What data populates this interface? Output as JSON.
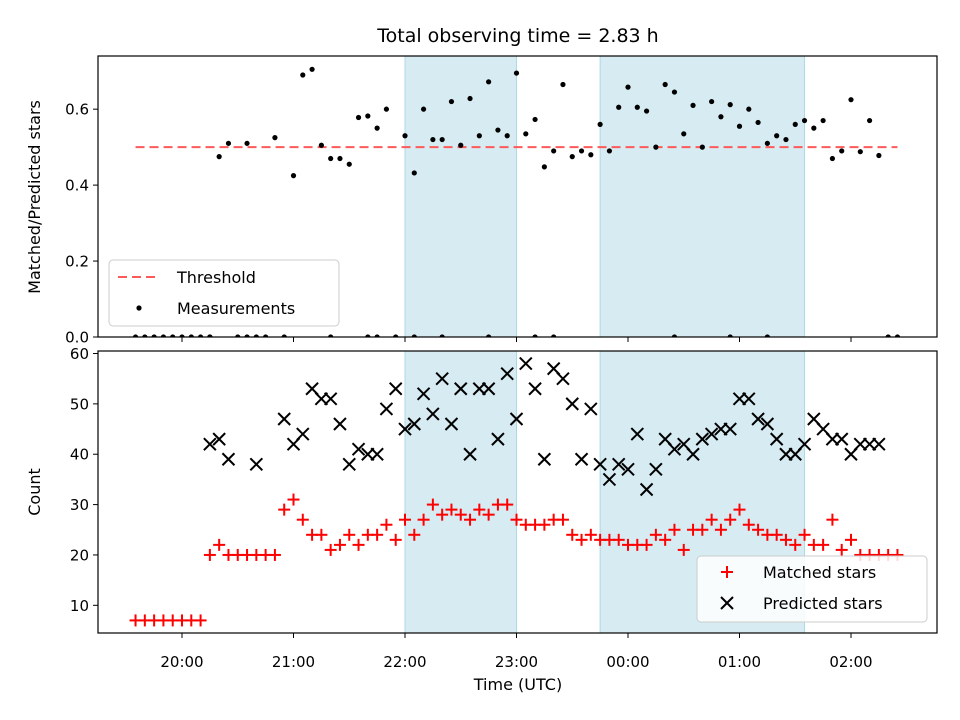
{
  "chart_data": {
    "type": "scatter",
    "title": "Total observing time = 2.83 h",
    "xlabel": "Time (UTC)",
    "x_ticks": [
      "20:00",
      "21:00",
      "22:00",
      "23:00",
      "00:00",
      "01:00",
      "02:00"
    ],
    "shaded_intervals": [
      [
        "22:00",
        "23:00"
      ],
      [
        "23:45",
        "01:35"
      ]
    ],
    "colors": {
      "shade": "#add8e6",
      "threshold": "#ff5a5a",
      "measurements": "#000000",
      "matched": "#ff0000",
      "predicted": "#000000"
    },
    "panels": [
      {
        "id": "ratio",
        "ylabel": "Matched/Predicted stars",
        "ylim": [
          0.0,
          0.74
        ],
        "y_ticks": [
          "0.0",
          "0.2",
          "0.4",
          "0.6"
        ],
        "legend_position": "lower left",
        "series": [
          {
            "name": "Threshold",
            "kind": "dashed-line",
            "x": [
              "19:35",
              "02:25"
            ],
            "y": [
              0.5,
              0.5
            ]
          },
          {
            "name": "Measurements",
            "kind": "dots",
            "x": [
              "19:35",
              "19:40",
              "19:45",
              "19:50",
              "19:55",
              "20:00",
              "20:05",
              "20:10",
              "20:15",
              "20:20",
              "20:25",
              "20:35",
              "20:40",
              "20:45",
              "20:50",
              "20:55",
              "21:00",
              "21:05",
              "21:10",
              "21:15",
              "21:20",
              "21:25",
              "21:30",
              "21:35",
              "21:40",
              "21:45",
              "21:50",
              "21:55",
              "22:00",
              "22:05",
              "22:10",
              "22:15",
              "22:20",
              "22:25",
              "22:30",
              "22:35",
              "22:40",
              "22:45",
              "22:50",
              "22:55",
              "23:00",
              "23:05",
              "23:10",
              "23:15",
              "23:20",
              "23:25",
              "23:30",
              "23:35",
              "23:40",
              "23:45",
              "23:50",
              "23:55",
              "00:00",
              "00:05",
              "00:10",
              "00:15",
              "00:20",
              "00:25",
              "00:30",
              "00:35",
              "00:40",
              "00:45",
              "00:50",
              "00:55",
              "01:00",
              "01:05",
              "01:10",
              "01:15",
              "01:20",
              "01:25",
              "01:30",
              "01:35",
              "01:40",
              "01:45",
              "01:50",
              "01:55",
              "02:00",
              "02:05",
              "02:10",
              "02:15",
              "02:20",
              "02:25",
              "20:15",
              "20:30",
              "20:35",
              "21:20",
              "21:40",
              "21:45",
              "22:05",
              "22:20",
              "22:45",
              "23:10",
              "23:20",
              "00:55",
              "01:15",
              "00:25"
            ],
            "y": [
              0.0,
              0.0,
              0.0,
              0.0,
              0.0,
              0.0,
              0.0,
              0.0,
              0.0,
              0.475,
              0.51,
              0.51,
              0.0,
              0.0,
              0.525,
              0.0,
              0.425,
              0.69,
              0.705,
              0.505,
              0.47,
              0.47,
              0.455,
              0.578,
              0.582,
              0.55,
              0.6,
              0.0,
              0.53,
              0.432,
              0.6,
              0.52,
              0.52,
              0.62,
              0.505,
              0.628,
              0.53,
              0.672,
              0.545,
              0.53,
              0.695,
              0.535,
              0.573,
              0.448,
              0.49,
              0.665,
              0.475,
              0.49,
              0.48,
              0.56,
              0.49,
              0.605,
              0.658,
              0.605,
              0.595,
              0.5,
              0.665,
              0.645,
              0.535,
              0.61,
              0.5,
              0.62,
              0.58,
              0.612,
              0.555,
              0.6,
              0.565,
              0.51,
              0.53,
              0.52,
              0.56,
              0.57,
              0.55,
              0.57,
              0.47,
              0.49,
              0.625,
              0.488,
              0.57,
              0.478,
              0.0,
              0.0,
              0.0,
              0.0,
              0.0,
              0.0,
              0.0,
              0.0,
              0.0,
              0.0,
              0.0,
              0.0,
              0.0,
              0.0,
              0.0,
              0.0
            ]
          }
        ]
      },
      {
        "id": "count",
        "ylabel": "Count",
        "ylim": [
          4.5,
          60.5
        ],
        "y_ticks": [
          "10",
          "20",
          "30",
          "40",
          "50",
          "60"
        ],
        "legend_position": "lower right",
        "series": [
          {
            "name": "Matched stars",
            "kind": "plus",
            "x": [
              "19:35",
              "19:40",
              "19:45",
              "19:50",
              "19:55",
              "20:00",
              "20:05",
              "20:10",
              "20:15",
              "20:20",
              "20:25",
              "20:30",
              "20:35",
              "20:40",
              "20:45",
              "20:50",
              "20:55",
              "21:00",
              "21:05",
              "21:10",
              "21:15",
              "21:20",
              "21:25",
              "21:30",
              "21:35",
              "21:40",
              "21:45",
              "21:50",
              "21:55",
              "22:00",
              "22:05",
              "22:10",
              "22:15",
              "22:20",
              "22:25",
              "22:30",
              "22:35",
              "22:40",
              "22:45",
              "22:50",
              "22:55",
              "23:00",
              "23:05",
              "23:10",
              "23:15",
              "23:20",
              "23:25",
              "23:30",
              "23:35",
              "23:40",
              "23:45",
              "23:50",
              "23:55",
              "00:00",
              "00:05",
              "00:10",
              "00:15",
              "00:20",
              "00:25",
              "00:30",
              "00:35",
              "00:40",
              "00:45",
              "00:50",
              "00:55",
              "01:00",
              "01:05",
              "01:10",
              "01:15",
              "01:20",
              "01:25",
              "01:30",
              "01:35",
              "01:40",
              "01:45",
              "01:50",
              "01:55",
              "02:00",
              "02:05",
              "02:10",
              "02:15",
              "02:20",
              "02:25"
            ],
            "y": [
              7,
              7,
              7,
              7,
              7,
              7,
              7,
              7,
              20,
              22,
              20,
              20,
              20,
              20,
              20,
              20,
              29,
              31,
              27,
              24,
              24,
              21,
              22,
              24,
              22,
              24,
              24,
              26,
              23,
              27,
              24,
              27,
              30,
              28,
              29,
              28,
              27,
              29,
              28,
              30,
              30,
              27,
              26,
              26,
              26,
              27,
              27,
              24,
              23,
              24,
              23,
              23,
              23,
              22,
              22,
              22,
              24,
              23,
              25,
              21,
              25,
              25,
              27,
              25,
              27,
              29,
              26,
              25,
              24,
              24,
              23,
              22,
              24,
              22,
              22,
              27,
              21,
              23,
              20,
              20,
              20,
              20,
              20
            ]
          },
          {
            "name": "Predicted stars",
            "kind": "x",
            "x": [
              "20:15",
              "20:20",
              "20:25",
              "20:40",
              "20:55",
              "21:00",
              "21:05",
              "21:10",
              "21:15",
              "21:20",
              "21:25",
              "21:30",
              "21:35",
              "21:40",
              "21:45",
              "21:50",
              "21:55",
              "22:00",
              "22:05",
              "22:10",
              "22:15",
              "22:20",
              "22:25",
              "22:30",
              "22:35",
              "22:40",
              "22:45",
              "22:50",
              "22:55",
              "23:00",
              "23:05",
              "23:10",
              "23:15",
              "23:20",
              "23:25",
              "23:30",
              "23:35",
              "23:40",
              "23:45",
              "23:50",
              "23:55",
              "00:00",
              "00:05",
              "00:10",
              "00:15",
              "00:20",
              "00:25",
              "00:30",
              "00:35",
              "00:40",
              "00:45",
              "00:50",
              "00:55",
              "01:00",
              "01:05",
              "01:10",
              "01:15",
              "01:20",
              "01:25",
              "01:30",
              "01:35",
              "01:40",
              "01:45",
              "01:50",
              "01:55",
              "02:00",
              "02:05",
              "02:10",
              "02:15"
            ],
            "y": [
              42,
              43,
              39,
              38,
              47,
              42,
              44,
              53,
              51,
              51,
              46,
              38,
              41,
              40,
              40,
              49,
              53,
              45,
              46,
              52,
              48,
              55,
              46,
              53,
              40,
              53,
              53,
              43,
              56,
              47,
              58,
              53,
              39,
              57,
              55,
              50,
              39,
              49,
              38,
              35,
              38,
              37,
              44,
              33,
              37,
              43,
              41,
              42,
              40,
              43,
              44,
              45,
              45,
              51,
              51,
              47,
              46,
              43,
              40,
              40,
              42,
              47,
              45,
              43,
              43,
              40,
              42,
              42,
              42
            ]
          }
        ]
      }
    ]
  }
}
